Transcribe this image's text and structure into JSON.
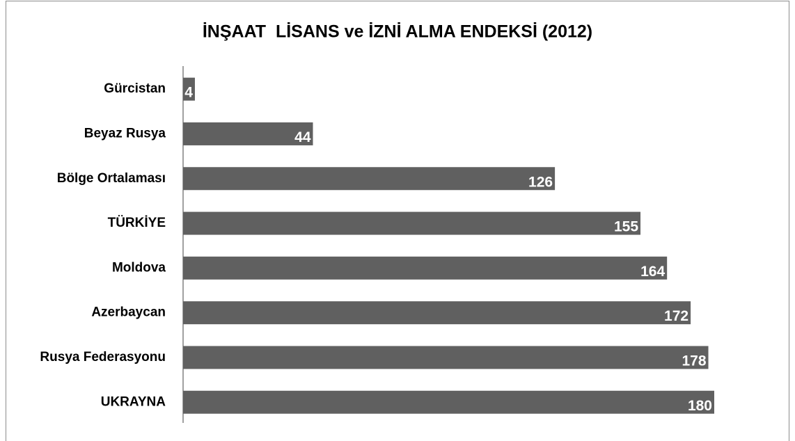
{
  "chart_data": {
    "type": "bar",
    "orientation": "horizontal",
    "title": "İNŞAAT  LİSANS ve İZNİ ALMA ENDEKSİ (2012)",
    "categories": [
      "Gürcistan",
      "Beyaz Rusya",
      "Bölge Ortalaması",
      "TÜRKİYE",
      "Moldova",
      "Azerbaycan",
      "Rusya Federasyonu",
      "UKRAYNA"
    ],
    "values": [
      4,
      44,
      126,
      155,
      164,
      172,
      178,
      180
    ],
    "color": "#606060"
  }
}
